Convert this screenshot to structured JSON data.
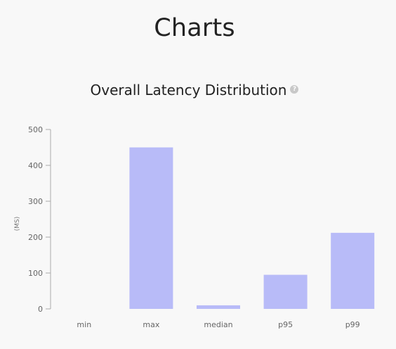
{
  "page": {
    "title": "Charts"
  },
  "chart_heading": {
    "title": "Overall Latency Distribution",
    "help_symbol": "?"
  },
  "chart_data": {
    "type": "bar",
    "title": "Overall Latency Distribution",
    "categories": [
      "min",
      "max",
      "median",
      "p95",
      "p99"
    ],
    "values": [
      0,
      450,
      10,
      95,
      212
    ],
    "xlabel": "",
    "ylabel": "(MS)",
    "ylim": [
      0,
      500
    ],
    "yticks": [
      0,
      100,
      200,
      300,
      400,
      500
    ],
    "grid": false,
    "bar_color": "#b8bbf8",
    "axis_color": "#aaaaaa"
  }
}
